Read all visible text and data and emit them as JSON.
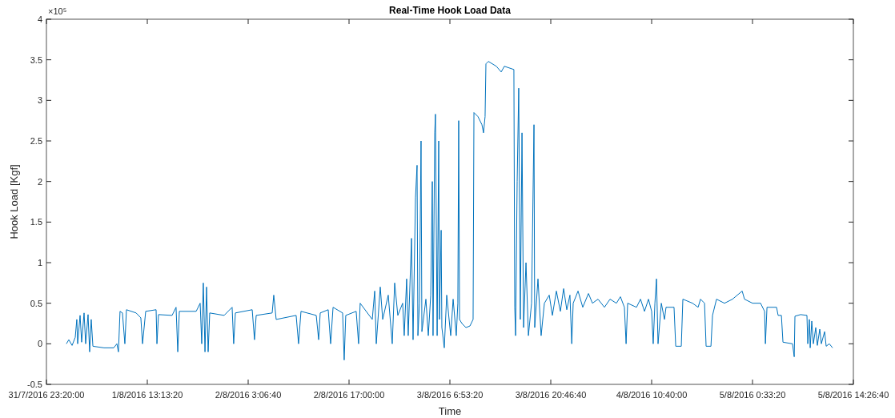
{
  "chart_data": {
    "type": "line",
    "title": "Real-Time Hook Load Data",
    "xlabel": "Time",
    "ylabel": "Hook Load [Kgf]",
    "annotations": [
      "×10⁵"
    ],
    "xlim": [
      "2016-07-31T23:20:00",
      "2016-08-05T14:26:40"
    ],
    "xticks": [
      {
        "value": "2016-07-31T23:20:00",
        "label": "31/7/2016 23:20:00"
      },
      {
        "value": "2016-08-01T13:13:20",
        "label": "1/8/2016 13:13:20"
      },
      {
        "value": "2016-08-02T03:06:40",
        "label": "2/8/2016 3:06:40"
      },
      {
        "value": "2016-08-02T17:00:00",
        "label": "2/8/2016 17:00:00"
      },
      {
        "value": "2016-08-03T06:53:20",
        "label": "3/8/2016 6:53:20"
      },
      {
        "value": "2016-08-03T20:46:40",
        "label": "3/8/2016 20:46:40"
      },
      {
        "value": "2016-08-04T10:40:00",
        "label": "4/8/2016 10:40:00"
      },
      {
        "value": "2016-08-05T00:33:20",
        "label": "5/8/2016 0:33:20"
      },
      {
        "value": "2016-08-05T14:26:40",
        "label": "5/8/2016 14:26:40"
      }
    ],
    "ylim": [
      -0.5,
      4
    ],
    "yticks": [
      -0.5,
      0,
      0.5,
      1,
      1.5,
      2,
      2.5,
      3,
      3.5,
      4
    ],
    "grid": false,
    "line_style": "solid",
    "x": [
      "2016-08-01T02:05",
      "2016-08-01T02:25",
      "2016-08-01T02:52",
      "2016-08-01T03:18",
      "2016-08-01T03:31",
      "2016-08-01T03:38",
      "2016-08-01T03:58",
      "2016-08-01T04:11",
      "2016-08-01T04:31",
      "2016-08-01T04:44",
      "2016-08-01T05:04",
      "2016-08-01T05:17",
      "2016-08-01T05:30",
      "2016-08-01T05:44",
      "2016-08-01T07:16",
      "2016-08-01T08:36",
      "2016-08-01T09:02",
      "2016-08-01T09:15",
      "2016-08-01T09:28",
      "2016-08-01T09:48",
      "2016-08-01T10:08",
      "2016-08-01T10:21",
      "2016-08-01T11:41",
      "2016-08-01T12:20",
      "2016-08-01T12:34",
      "2016-08-01T13:00",
      "2016-08-01T14:26",
      "2016-08-01T14:33",
      "2016-08-01T14:46",
      "2016-08-01T16:38",
      "2016-08-01T17:11",
      "2016-08-01T17:25",
      "2016-08-01T17:38",
      "2016-08-01T19:57",
      "2016-08-01T20:30",
      "2016-08-01T20:43",
      "2016-08-01T20:56",
      "2016-08-01T21:10",
      "2016-08-01T21:23",
      "2016-08-01T21:36",
      "2016-08-01T21:49",
      "2016-08-01T23:48",
      "2016-08-02T00:54",
      "2016-08-02T01:07",
      "2016-08-02T01:21",
      "2016-08-02T03:40",
      "2016-08-02T03:59",
      "2016-08-02T04:13",
      "2016-08-02T06:25",
      "2016-08-02T06:38",
      "2016-08-02T06:58",
      "2016-08-02T09:43",
      "2016-08-02T10:03",
      "2016-08-02T10:23",
      "2016-08-02T12:29",
      "2016-08-02T12:49",
      "2016-08-02T13:02",
      "2016-08-02T14:08",
      "2016-08-02T14:28",
      "2016-08-02T14:48",
      "2016-08-02T16:07",
      "2016-08-02T16:20",
      "2016-08-02T16:33",
      "2016-08-02T17:59",
      "2016-08-02T18:19",
      "2016-08-02T18:32",
      "2016-08-02T20:12",
      "2016-08-02T20:32",
      "2016-08-02T20:45",
      "2016-08-02T21:18",
      "2016-08-02T21:38",
      "2016-08-02T22:24",
      "2016-08-02T22:57",
      "2016-08-02T23:17",
      "2016-08-02T23:43",
      "2016-08-03T00:23",
      "2016-08-03T00:36",
      "2016-08-03T00:56",
      "2016-08-03T01:09",
      "2016-08-03T01:36",
      "2016-08-03T01:49",
      "2016-08-03T02:09",
      "2016-08-03T02:22",
      "2016-08-03T02:29",
      "2016-08-03T02:42",
      "2016-08-03T02:55",
      "2016-08-03T03:02",
      "2016-08-03T03:35",
      "2016-08-03T03:55",
      "2016-08-03T04:15",
      "2016-08-03T04:28",
      "2016-08-03T04:34",
      "2016-08-03T04:48",
      "2016-08-03T04:54",
      "2016-08-03T05:08",
      "2016-08-03T05:21",
      "2016-08-03T05:27",
      "2016-08-03T05:41",
      "2016-08-03T05:47",
      "2016-08-03T06:07",
      "2016-08-03T06:27",
      "2016-08-03T07:00",
      "2016-08-03T07:20",
      "2016-08-03T07:46",
      "2016-08-03T07:59",
      "2016-08-03T08:06",
      "2016-08-03T08:13",
      "2016-08-03T08:33",
      "2016-08-03T09:06",
      "2016-08-03T09:39",
      "2016-08-03T10:05",
      "2016-08-03T10:12",
      "2016-08-03T10:45",
      "2016-08-03T11:18",
      "2016-08-03T11:31",
      "2016-08-03T11:44",
      "2016-08-03T11:51",
      "2016-08-03T12:11",
      "2016-08-03T13:17",
      "2016-08-03T13:57",
      "2016-08-03T14:23",
      "2016-08-03T15:42",
      "2016-08-03T15:49",
      "2016-08-03T15:56",
      "2016-08-03T16:09",
      "2016-08-03T16:22",
      "2016-08-03T16:35",
      "2016-08-03T16:49",
      "2016-08-03T17:02",
      "2016-08-03T17:22",
      "2016-08-03T17:42",
      "2016-08-03T18:08",
      "2016-08-03T18:28",
      "2016-08-03T18:34",
      "2016-08-03T19:01",
      "2016-08-03T19:27",
      "2016-08-03T19:54",
      "2016-08-03T20:34",
      "2016-08-03T21:00",
      "2016-08-03T21:33",
      "2016-08-03T22:06",
      "2016-08-03T22:33",
      "2016-08-03T22:59",
      "2016-08-03T23:25",
      "2016-08-03T23:40",
      "2016-08-03T23:52",
      "2016-08-04T00:32",
      "2016-08-04T01:11",
      "2016-08-04T01:58",
      "2016-08-04T02:31",
      "2016-08-04T03:17",
      "2016-08-04T04:10",
      "2016-08-04T04:56",
      "2016-08-04T05:49",
      "2016-08-04T06:22",
      "2016-08-04T06:55",
      "2016-08-04T07:09",
      "2016-08-04T07:22",
      "2016-08-04T08:35",
      "2016-08-04T09:08",
      "2016-08-04T09:41",
      "2016-08-04T10:14",
      "2016-08-04T10:40",
      "2016-08-04T10:53",
      "2016-08-04T11:07",
      "2016-08-04T11:20",
      "2016-08-04T11:33",
      "2016-08-04T12:00",
      "2016-08-04T12:26",
      "2016-08-04T12:39",
      "2016-08-04T13:45",
      "2016-08-04T13:59",
      "2016-08-04T14:45",
      "2016-08-04T14:58",
      "2016-08-04T16:18",
      "2016-08-04T17:04",
      "2016-08-04T17:24",
      "2016-08-04T17:57",
      "2016-08-04T18:10",
      "2016-08-04T18:50",
      "2016-08-04T19:03",
      "2016-08-04T19:36",
      "2016-08-04T20:42",
      "2016-08-04T21:48",
      "2016-08-04T23:08",
      "2016-08-04T23:27",
      "2016-08-05T00:34",
      "2016-08-05T01:40",
      "2016-08-05T02:13",
      "2016-08-05T02:20",
      "2016-08-05T02:33",
      "2016-08-05T03:52",
      "2016-08-05T04:05",
      "2016-08-05T04:32",
      "2016-08-05T04:45",
      "2016-08-05T06:04",
      "2016-08-05T06:18",
      "2016-08-05T06:24",
      "2016-08-05T07:11",
      "2016-08-05T08:03",
      "2016-08-05T08:10",
      "2016-08-05T08:23",
      "2016-08-05T08:30",
      "2016-08-05T08:43",
      "2016-08-05T08:56",
      "2016-08-05T09:16",
      "2016-08-05T09:29",
      "2016-08-05T09:49",
      "2016-08-05T10:02",
      "2016-08-05T10:29",
      "2016-08-05T10:42",
      "2016-08-05T11:08",
      "2016-08-05T11:35"
    ],
    "series": [
      {
        "color": "#0072bd",
        "values": [
          0,
          0.05,
          -0.02,
          0.08,
          0.3,
          0,
          0.35,
          0.02,
          0.38,
          0,
          0.36,
          -0.1,
          0.3,
          -0.03,
          -0.05,
          -0.05,
          0,
          -0.1,
          0.4,
          0.38,
          0,
          0.42,
          0.38,
          0.32,
          0,
          0.4,
          0.42,
          0,
          0.36,
          0.35,
          0.45,
          -0.1,
          0.4,
          0.4,
          0.5,
          0,
          0.75,
          -0.1,
          0.7,
          -0.1,
          0.38,
          0.35,
          0.45,
          0,
          0.38,
          0.42,
          0.05,
          0.35,
          0.38,
          0.6,
          0.3,
          0.35,
          0,
          0.4,
          0.35,
          0.05,
          0.38,
          0.42,
          0,
          0.45,
          0.38,
          -0.2,
          0.35,
          0.4,
          0,
          0.5,
          0.3,
          0.65,
          0,
          0.7,
          0.3,
          0.6,
          0,
          0.75,
          0.35,
          0.5,
          0.1,
          0.8,
          0.1,
          1.3,
          0.05,
          1.8,
          2.2,
          0.1,
          0.5,
          2.5,
          0.15,
          0.55,
          0.1,
          0.6,
          2,
          0.1,
          2.6,
          2.83,
          0.1,
          2.5,
          0.3,
          1.4,
          0.2,
          -0.05,
          0.6,
          0.1,
          0.55,
          0.1,
          0.5,
          2.75,
          0.3,
          0.25,
          0.2,
          0.22,
          0.3,
          2.85,
          2.8,
          2.7,
          2.6,
          2.8,
          3.45,
          3.48,
          3.42,
          3.35,
          3.42,
          3.38,
          0.45,
          0.1,
          2,
          3.15,
          0.3,
          2.6,
          0.2,
          1,
          0.1,
          0.5,
          2.7,
          0.2,
          0.8,
          0.1,
          0.5,
          0.6,
          0.35,
          0.65,
          0.4,
          0.68,
          0.42,
          0.6,
          0,
          0.5,
          0.65,
          0.45,
          0.62,
          0.5,
          0.55,
          0.45,
          0.55,
          0.5,
          0.58,
          0.45,
          0,
          0.5,
          0.45,
          0.55,
          0.4,
          0.55,
          0.4,
          0,
          0.5,
          0.8,
          0,
          0.5,
          0.3,
          0.45,
          0.45,
          -0.03,
          -0.03,
          0.55,
          0.5,
          0.45,
          0.55,
          0.5,
          -0.03,
          -0.03,
          0.35,
          0.55,
          0.5,
          0.55,
          0.65,
          0.55,
          0.5,
          0.5,
          0.4,
          0,
          0.45,
          0.45,
          0.35,
          0.35,
          0.02,
          0,
          -0.16,
          0.34,
          0.36,
          0.35,
          0,
          0.3,
          -0.05,
          0.28,
          0,
          0.2,
          -0.02,
          0.18,
          0,
          0.15,
          -0.03,
          0,
          -0.05
        ]
      }
    ]
  }
}
